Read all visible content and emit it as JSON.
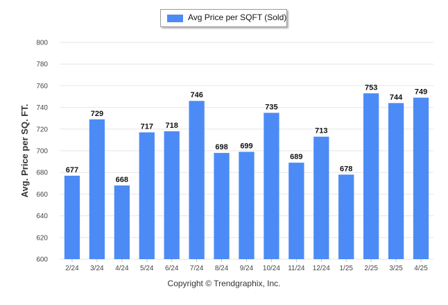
{
  "legend": {
    "label": "Avg Price per SQFT (Sold)"
  },
  "footer": {
    "text": "Copyright © Trendgraphix, Inc."
  },
  "colors": {
    "bar": "#4c8bf5",
    "grid": "#e6e6e6"
  },
  "chart_data": {
    "type": "bar",
    "title": "",
    "xlabel": "",
    "ylabel": "Avg. Price per SQ. FT.",
    "ylim": [
      600,
      800
    ],
    "yticks": [
      600,
      620,
      640,
      660,
      680,
      700,
      720,
      740,
      760,
      780,
      800
    ],
    "grid": true,
    "legend_position": "top-center",
    "categories": [
      "2/24",
      "3/24",
      "4/24",
      "5/24",
      "6/24",
      "7/24",
      "8/24",
      "9/24",
      "10/24",
      "11/24",
      "12/24",
      "1/25",
      "2/25",
      "3/25",
      "4/25"
    ],
    "series": [
      {
        "name": "Avg Price per SQFT (Sold)",
        "values": [
          677,
          729,
          668,
          717,
          718,
          746,
          698,
          699,
          735,
          689,
          713,
          678,
          753,
          744,
          749
        ]
      }
    ],
    "data_labels": true
  }
}
